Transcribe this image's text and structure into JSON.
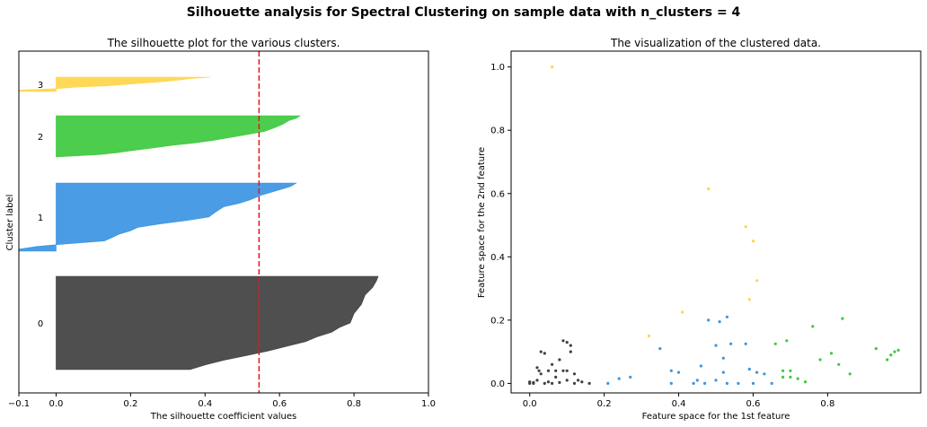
{
  "suptitle": "Silhouette analysis for Spectral Clustering on sample data with n_clusters = 4",
  "chart_data": [
    {
      "type": "area",
      "title": "The silhouette plot for the various clusters.",
      "xlabel": "The silhouette coefficient values",
      "ylabel": "Cluster label",
      "xlim": [
        -0.1,
        1.0
      ],
      "xticks": [
        -0.1,
        0.0,
        0.2,
        0.4,
        0.6,
        0.8,
        1.0
      ],
      "xtick_labels": [
        "−0.1",
        "0.0",
        "0.2",
        "0.4",
        "0.6",
        "0.8",
        "1.0"
      ],
      "yticks_hidden": true,
      "average_silhouette": 0.545,
      "clusters": [
        {
          "label": "0",
          "color": "#404040",
          "profile": [
            [
              0.0,
              0.865
            ],
            [
              0.05,
              0.86
            ],
            [
              0.12,
              0.85
            ],
            [
              0.2,
              0.83
            ],
            [
              0.3,
              0.82
            ],
            [
              0.4,
              0.8
            ],
            [
              0.5,
              0.79
            ],
            [
              0.55,
              0.76
            ],
            [
              0.6,
              0.74
            ],
            [
              0.65,
              0.7
            ],
            [
              0.7,
              0.67
            ],
            [
              0.75,
              0.62
            ],
            [
              0.8,
              0.57
            ],
            [
              0.85,
              0.51
            ],
            [
              0.9,
              0.45
            ],
            [
              0.95,
              0.4
            ],
            [
              1.0,
              0.36
            ]
          ]
        },
        {
          "label": "1",
          "color": "#3b94e2",
          "profile": [
            [
              0.0,
              0.645
            ],
            [
              0.05,
              0.63
            ],
            [
              0.1,
              0.6
            ],
            [
              0.18,
              0.55
            ],
            [
              0.25,
              0.52
            ],
            [
              0.3,
              0.49
            ],
            [
              0.35,
              0.45
            ],
            [
              0.42,
              0.43
            ],
            [
              0.5,
              0.41
            ],
            [
              0.55,
              0.35
            ],
            [
              0.6,
              0.28
            ],
            [
              0.65,
              0.22
            ],
            [
              0.7,
              0.2
            ],
            [
              0.75,
              0.17
            ],
            [
              0.8,
              0.15
            ],
            [
              0.85,
              0.13
            ],
            [
              0.9,
              0.01
            ],
            [
              0.93,
              -0.05
            ],
            [
              0.97,
              -0.1
            ],
            [
              1.0,
              -0.1
            ]
          ]
        },
        {
          "label": "2",
          "color": "#3ec93e",
          "profile": [
            [
              0.0,
              0.655
            ],
            [
              0.06,
              0.645
            ],
            [
              0.12,
              0.625
            ],
            [
              0.2,
              0.61
            ],
            [
              0.28,
              0.59
            ],
            [
              0.38,
              0.56
            ],
            [
              0.46,
              0.51
            ],
            [
              0.54,
              0.46
            ],
            [
              0.6,
              0.42
            ],
            [
              0.66,
              0.37
            ],
            [
              0.72,
              0.31
            ],
            [
              0.78,
              0.26
            ],
            [
              0.85,
              0.2
            ],
            [
              0.9,
              0.16
            ],
            [
              0.94,
              0.12
            ],
            [
              1.0,
              0.0
            ]
          ]
        },
        {
          "label": "3",
          "color": "#ffd54a",
          "profile": [
            [
              0.0,
              0.415
            ],
            [
              0.1,
              0.36
            ],
            [
              0.2,
              0.33
            ],
            [
              0.3,
              0.29
            ],
            [
              0.4,
              0.24
            ],
            [
              0.5,
              0.19
            ],
            [
              0.6,
              0.14
            ],
            [
              0.7,
              0.05
            ],
            [
              0.8,
              0.0
            ],
            [
              0.9,
              -0.1
            ],
            [
              1.0,
              -0.1
            ]
          ]
        }
      ]
    },
    {
      "type": "scatter",
      "title": "The visualization of the clustered data.",
      "xlabel": "Feature space for the 1st feature",
      "ylabel": "Feature space for the 2nd feature",
      "xlim": [
        -0.05,
        1.05
      ],
      "ylim": [
        -0.03,
        1.05
      ],
      "xticks": [
        0.0,
        0.2,
        0.4,
        0.6,
        0.8
      ],
      "xtick_labels": [
        "0.0",
        "0.2",
        "0.4",
        "0.6",
        "0.8"
      ],
      "yticks": [
        0.0,
        0.2,
        0.4,
        0.6,
        0.8,
        1.0
      ],
      "ytick_labels": [
        "0.0",
        "0.2",
        "0.4",
        "0.6",
        "0.8",
        "1.0"
      ],
      "series": [
        {
          "color": "#404040",
          "points": [
            [
              0.0,
              0.0
            ],
            [
              0.01,
              0.003
            ],
            [
              0.02,
              0.01
            ],
            [
              0.02,
              0.05
            ],
            [
              0.03,
              0.1
            ],
            [
              0.04,
              0.095
            ],
            [
              0.03,
              0.03
            ],
            [
              0.04,
              0.0
            ],
            [
              0.05,
              0.005
            ],
            [
              0.06,
              0.06
            ],
            [
              0.06,
              0.0
            ],
            [
              0.07,
              0.02
            ],
            [
              0.08,
              0.003
            ],
            [
              0.08,
              0.075
            ],
            [
              0.09,
              0.04
            ],
            [
              0.09,
              0.135
            ],
            [
              0.1,
              0.13
            ],
            [
              0.1,
              0.01
            ],
            [
              0.11,
              0.12
            ],
            [
              0.11,
              0.1
            ],
            [
              0.12,
              0.03
            ],
            [
              0.12,
              0.0
            ],
            [
              0.13,
              0.01
            ],
            [
              0.14,
              0.005
            ],
            [
              0.16,
              0.0
            ],
            [
              0.0,
              0.005
            ],
            [
              0.01,
              0.0
            ],
            [
              0.05,
              0.04
            ],
            [
              0.07,
              0.04
            ],
            [
              0.1,
              0.04
            ],
            [
              0.025,
              0.04
            ]
          ]
        },
        {
          "color": "#3b94e2",
          "points": [
            [
              0.21,
              0.0
            ],
            [
              0.24,
              0.015
            ],
            [
              0.27,
              0.02
            ],
            [
              0.35,
              0.11
            ],
            [
              0.38,
              0.04
            ],
            [
              0.38,
              0.0
            ],
            [
              0.4,
              0.035
            ],
            [
              0.44,
              0.0
            ],
            [
              0.45,
              0.01
            ],
            [
              0.46,
              0.055
            ],
            [
              0.47,
              0.0
            ],
            [
              0.48,
              0.2
            ],
            [
              0.5,
              0.12
            ],
            [
              0.5,
              0.01
            ],
            [
              0.51,
              0.195
            ],
            [
              0.52,
              0.08
            ],
            [
              0.52,
              0.035
            ],
            [
              0.53,
              0.21
            ],
            [
              0.53,
              0.0
            ],
            [
              0.54,
              0.125
            ],
            [
              0.56,
              0.0
            ],
            [
              0.58,
              0.125
            ],
            [
              0.59,
              0.045
            ],
            [
              0.6,
              0.0
            ],
            [
              0.61,
              0.035
            ],
            [
              0.63,
              0.03
            ],
            [
              0.65,
              0.0
            ]
          ]
        },
        {
          "color": "#3ec93e",
          "points": [
            [
              0.66,
              0.125
            ],
            [
              0.68,
              0.04
            ],
            [
              0.68,
              0.02
            ],
            [
              0.69,
              0.135
            ],
            [
              0.7,
              0.04
            ],
            [
              0.7,
              0.02
            ],
            [
              0.72,
              0.015
            ],
            [
              0.74,
              0.005
            ],
            [
              0.76,
              0.18
            ],
            [
              0.78,
              0.075
            ],
            [
              0.81,
              0.095
            ],
            [
              0.83,
              0.06
            ],
            [
              0.84,
              0.205
            ],
            [
              0.86,
              0.03
            ],
            [
              0.93,
              0.11
            ],
            [
              0.96,
              0.075
            ],
            [
              0.97,
              0.09
            ],
            [
              0.98,
              0.1
            ],
            [
              0.99,
              0.105
            ]
          ]
        },
        {
          "color": "#ffd54a",
          "points": [
            [
              0.06,
              1.0
            ],
            [
              0.48,
              0.615
            ],
            [
              0.58,
              0.495
            ],
            [
              0.6,
              0.45
            ],
            [
              0.61,
              0.325
            ],
            [
              0.59,
              0.265
            ],
            [
              0.41,
              0.225
            ],
            [
              0.32,
              0.15
            ]
          ]
        }
      ]
    }
  ]
}
